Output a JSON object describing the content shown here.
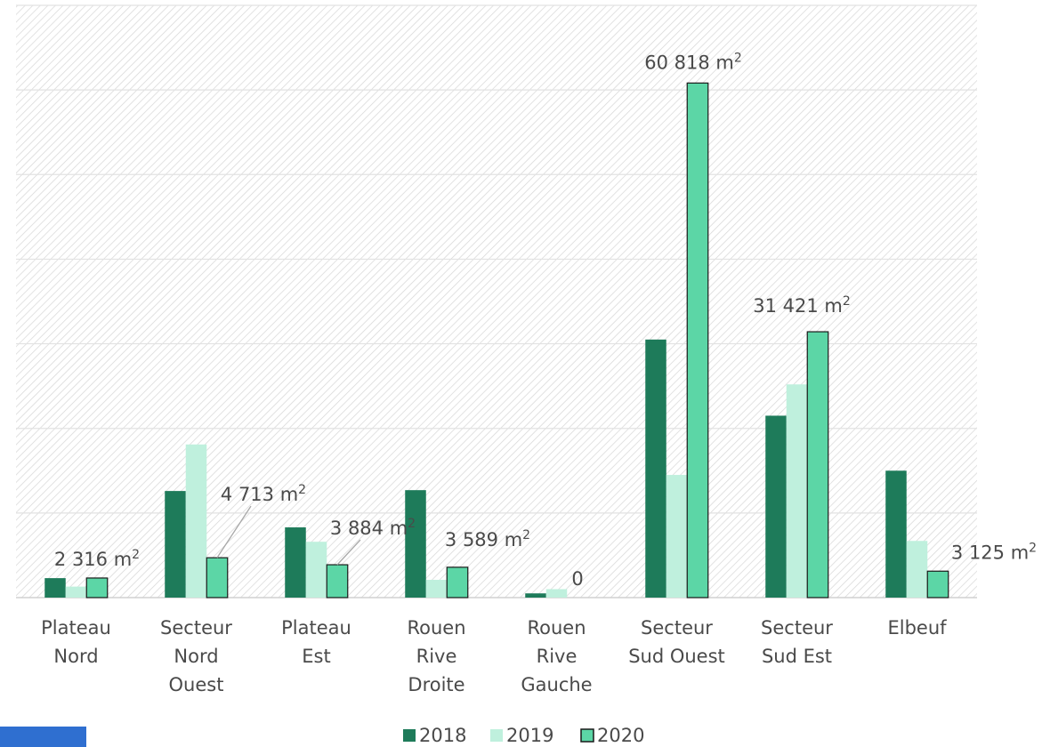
{
  "chart_data": {
    "type": "bar",
    "categories": [
      [
        "Plateau",
        "Nord"
      ],
      [
        "Secteur",
        "Nord",
        "Ouest"
      ],
      [
        "Plateau",
        "Est"
      ],
      [
        "Rouen",
        "Rive",
        "Droite"
      ],
      [
        "Rouen",
        "Rive",
        "Gauche"
      ],
      [
        "Secteur",
        "Sud Ouest"
      ],
      [
        "Secteur",
        "Sud Est"
      ],
      [
        "Elbeuf"
      ]
    ],
    "series": [
      {
        "name": "2018",
        "color": "#1e7b5a",
        "values": [
          2300,
          12600,
          8300,
          12700,
          500,
          30500,
          21500,
          15000
        ]
      },
      {
        "name": "2019",
        "color": "#bff0dd",
        "values": [
          1300,
          18100,
          6600,
          2100,
          1000,
          14500,
          25200,
          6700
        ]
      },
      {
        "name": "2020",
        "color": "#5cd6a6",
        "values": [
          2316,
          4713,
          3884,
          3589,
          0,
          60818,
          31421,
          3125
        ]
      }
    ],
    "data_labels": [
      "2 316 m²",
      "4 713 m²",
      "3 884 m²",
      "3 589 m²",
      "0",
      "60 818 m²",
      "31 421 m²",
      "3 125 m²"
    ],
    "ylim": [
      0,
      70000
    ],
    "y_gridline_step": 10000,
    "grid": true,
    "y_axis_labels_shown": false,
    "legend_position": "bottom"
  }
}
